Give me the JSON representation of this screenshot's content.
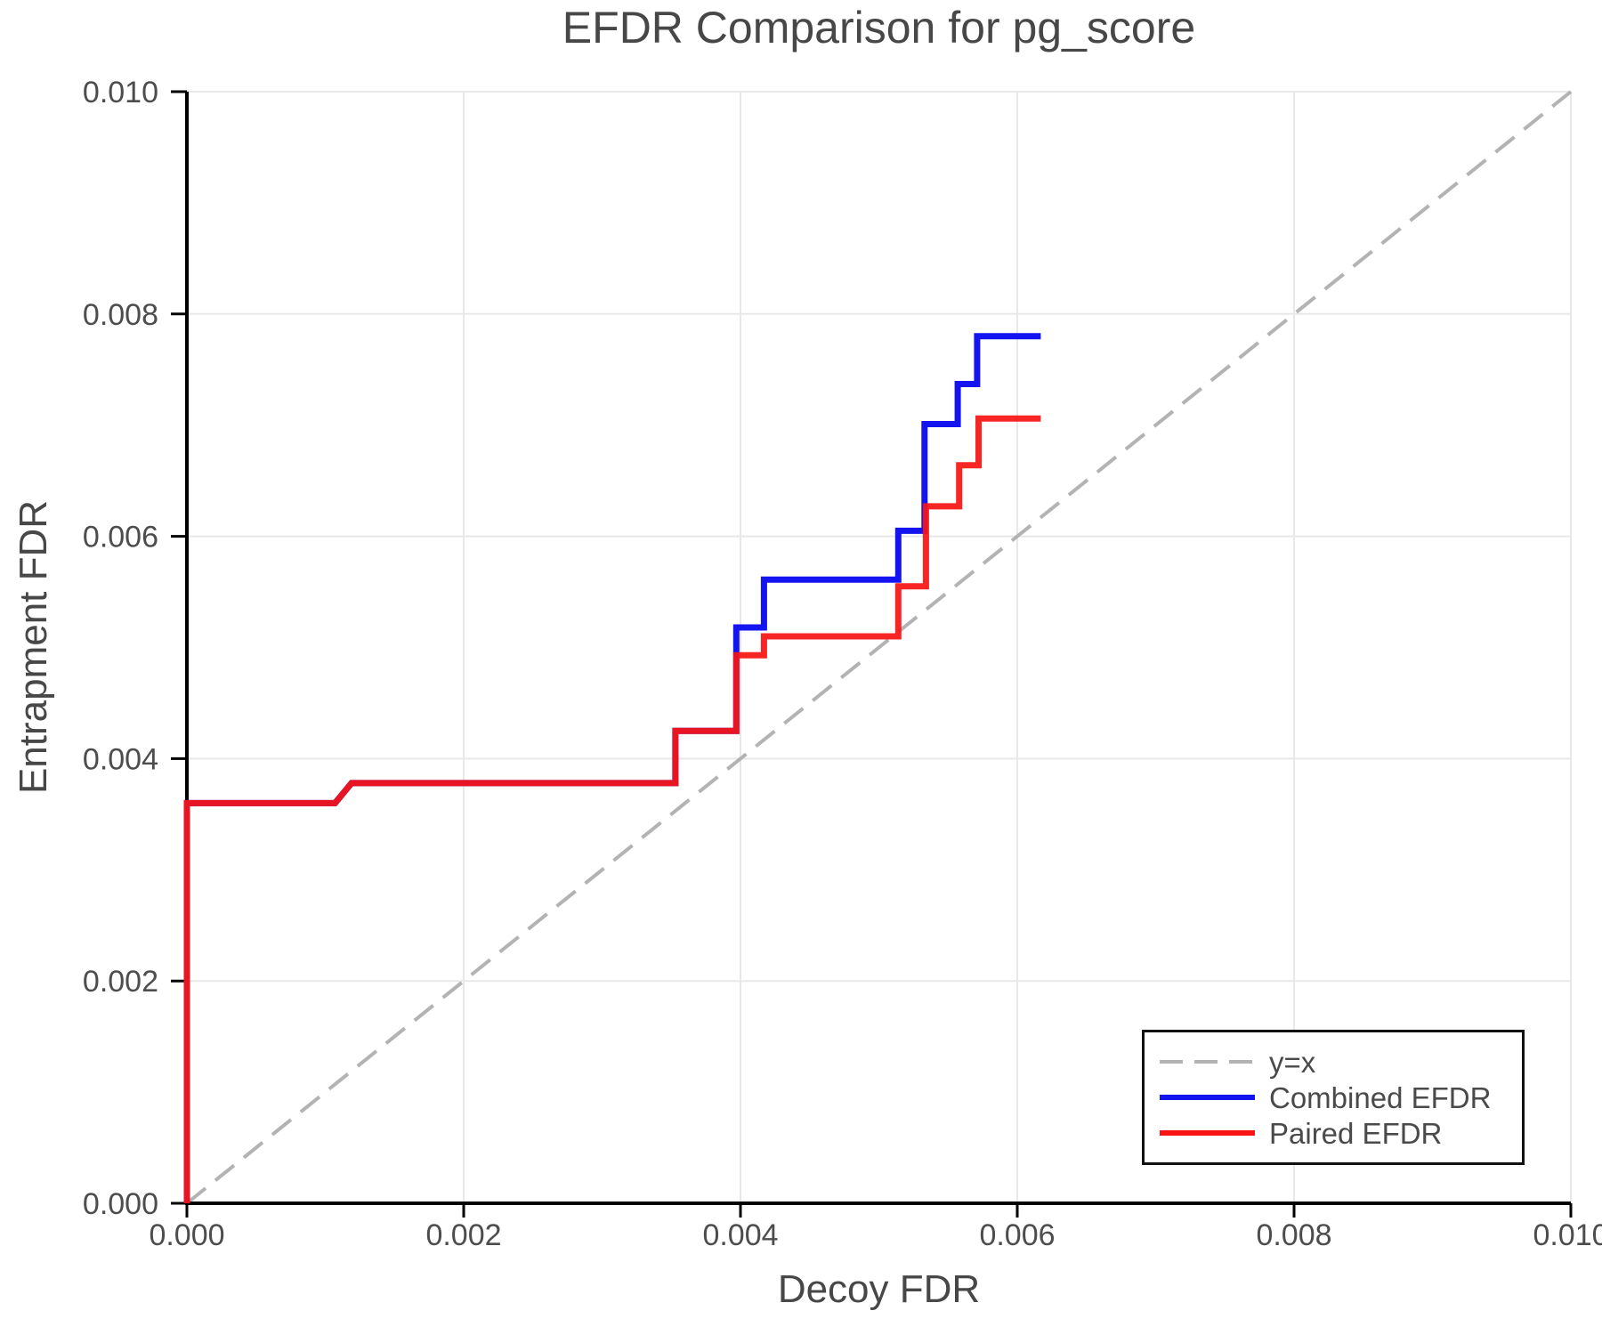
{
  "title": "EFDR Comparison for pg_score",
  "axes": {
    "x": {
      "label": "Decoy FDR",
      "tick_labels": [
        "0.000",
        "0.002",
        "0.004",
        "0.006",
        "0.008",
        "0.010"
      ],
      "tick_values": [
        0,
        0.002,
        0.004,
        0.006,
        0.008,
        0.01
      ]
    },
    "y": {
      "label": "Entrapment FDR",
      "tick_labels": [
        "0.000",
        "0.002",
        "0.004",
        "0.006",
        "0.008",
        "0.010"
      ],
      "tick_values": [
        0,
        0.002,
        0.004,
        0.006,
        0.008,
        0.01
      ]
    }
  },
  "legend": {
    "items": [
      {
        "label": "y=x",
        "color": "#b3b3b3",
        "style": "dashed"
      },
      {
        "label": "Combined EFDR",
        "color": "#1414f0",
        "style": "solid"
      },
      {
        "label": "Paired EFDR",
        "color": "#f81414",
        "style": "solid"
      }
    ]
  },
  "chart_data": {
    "type": "line",
    "step": "hv",
    "title": "EFDR Comparison for pg_score",
    "xlabel": "Decoy FDR",
    "ylabel": "Entrapment FDR",
    "xlim": [
      0,
      0.01
    ],
    "ylim": [
      0,
      0.01
    ],
    "grid": true,
    "grid_color": "#e8e8e8",
    "spine_color": "#000000",
    "reference_line": {
      "label": "y=x",
      "from": [
        0,
        0
      ],
      "to": [
        0.01,
        0.01
      ],
      "style": "dashed",
      "color": "#b3b3b3"
    },
    "series": [
      {
        "name": "Combined EFDR",
        "color": "#1414f0",
        "opacity": 1,
        "points": [
          [
            0.0,
            0.0
          ],
          [
            0.0,
            0.0036
          ],
          [
            0.00107,
            0.0036
          ],
          [
            0.00119,
            0.00378
          ],
          [
            0.00353,
            0.00378
          ],
          [
            0.00353,
            0.00425
          ],
          [
            0.00397,
            0.00425
          ],
          [
            0.00397,
            0.00518
          ],
          [
            0.00417,
            0.00518
          ],
          [
            0.00417,
            0.00561
          ],
          [
            0.00514,
            0.00561
          ],
          [
            0.00514,
            0.00605
          ],
          [
            0.00533,
            0.00605
          ],
          [
            0.00533,
            0.00701
          ],
          [
            0.00557,
            0.00701
          ],
          [
            0.00557,
            0.00737
          ],
          [
            0.00571,
            0.00737
          ],
          [
            0.00571,
            0.0078
          ],
          [
            0.00617,
            0.0078
          ]
        ]
      },
      {
        "name": "Paired EFDR",
        "color": "#f81414",
        "opacity": 0.93,
        "points": [
          [
            0.0,
            0.0
          ],
          [
            0.0,
            0.0036
          ],
          [
            0.00107,
            0.0036
          ],
          [
            0.00119,
            0.00378
          ],
          [
            0.00353,
            0.00378
          ],
          [
            0.00353,
            0.00425
          ],
          [
            0.00397,
            0.00425
          ],
          [
            0.00397,
            0.00493
          ],
          [
            0.00417,
            0.00493
          ],
          [
            0.00417,
            0.0051
          ],
          [
            0.00514,
            0.0051
          ],
          [
            0.00514,
            0.00555
          ],
          [
            0.00534,
            0.00555
          ],
          [
            0.00534,
            0.00627
          ],
          [
            0.00558,
            0.00627
          ],
          [
            0.00558,
            0.00664
          ],
          [
            0.00572,
            0.00664
          ],
          [
            0.00572,
            0.00706
          ],
          [
            0.00617,
            0.00706
          ]
        ]
      }
    ]
  }
}
